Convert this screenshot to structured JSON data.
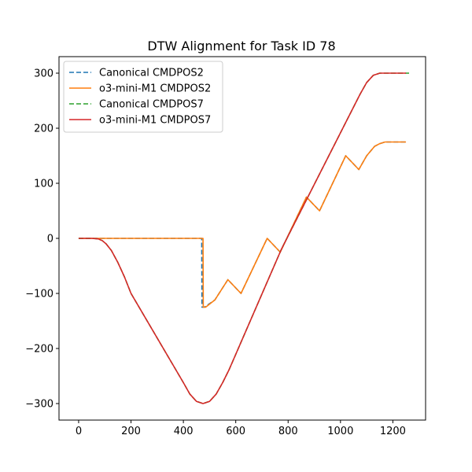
{
  "chart_data": {
    "type": "line",
    "title": "DTW Alignment for Task ID 78",
    "xlabel": "",
    "ylabel": "",
    "xlim": [
      -75,
      1325
    ],
    "ylim": [
      -330,
      330
    ],
    "xticks": [
      0,
      200,
      400,
      600,
      800,
      1000,
      1200
    ],
    "yticks": [
      -300,
      -200,
      -100,
      0,
      100,
      200,
      300
    ],
    "grid": false,
    "legend_position": "top-left",
    "series": [
      {
        "name": "Canonical CMDPOS2",
        "color": "#1f77b4",
        "style": "dashed",
        "x": [
          0,
          470,
          471,
          480,
          520,
          570,
          620,
          720,
          770,
          870,
          920,
          1020,
          1070,
          1100,
          1130,
          1150,
          1170,
          1200,
          1250
        ],
        "y": [
          0,
          0,
          -125,
          -125,
          -112,
          -75,
          -100,
          0,
          -25,
          75,
          50,
          150,
          125,
          150,
          167,
          172,
          175,
          175,
          175
        ]
      },
      {
        "name": "o3-mini-M1 CMDPOS2",
        "color": "#ff7f0e",
        "style": "solid",
        "x": [
          0,
          475,
          476,
          485,
          520,
          570,
          620,
          720,
          770,
          870,
          920,
          1020,
          1070,
          1100,
          1130,
          1150,
          1170,
          1200,
          1250
        ],
        "y": [
          0,
          0,
          -125,
          -125,
          -112,
          -75,
          -100,
          0,
          -25,
          75,
          50,
          150,
          125,
          150,
          167,
          172,
          175,
          175,
          175
        ]
      },
      {
        "name": "Canonical CMDPOS7",
        "color": "#2ca02c",
        "style": "dashed",
        "x": [
          0,
          50,
          75,
          90,
          105,
          125,
          150,
          175,
          200,
          400,
          425,
          450,
          475,
          500,
          525,
          550,
          575,
          775,
          1075,
          1100,
          1125,
          1150,
          1175,
          1200,
          1230,
          1262
        ],
        "y": [
          0,
          0,
          -1,
          -4,
          -10,
          -22,
          -44,
          -70,
          -100,
          -262,
          -283,
          -296,
          -300,
          -296,
          -283,
          -262,
          -238,
          -19,
          262,
          283,
          296,
          300,
          300,
          300,
          300,
          300
        ]
      },
      {
        "name": "o3-mini-M1 CMDPOS7",
        "color": "#d62728",
        "style": "solid",
        "x": [
          0,
          50,
          75,
          90,
          105,
          125,
          150,
          175,
          200,
          400,
          425,
          450,
          475,
          500,
          525,
          550,
          575,
          775,
          1075,
          1100,
          1125,
          1150,
          1175,
          1200,
          1230,
          1250
        ],
        "y": [
          0,
          0,
          -1,
          -4,
          -10,
          -22,
          -44,
          -70,
          -100,
          -262,
          -283,
          -296,
          -300,
          -296,
          -283,
          -262,
          -238,
          -19,
          262,
          283,
          296,
          300,
          300,
          300,
          300,
          300
        ]
      }
    ]
  }
}
